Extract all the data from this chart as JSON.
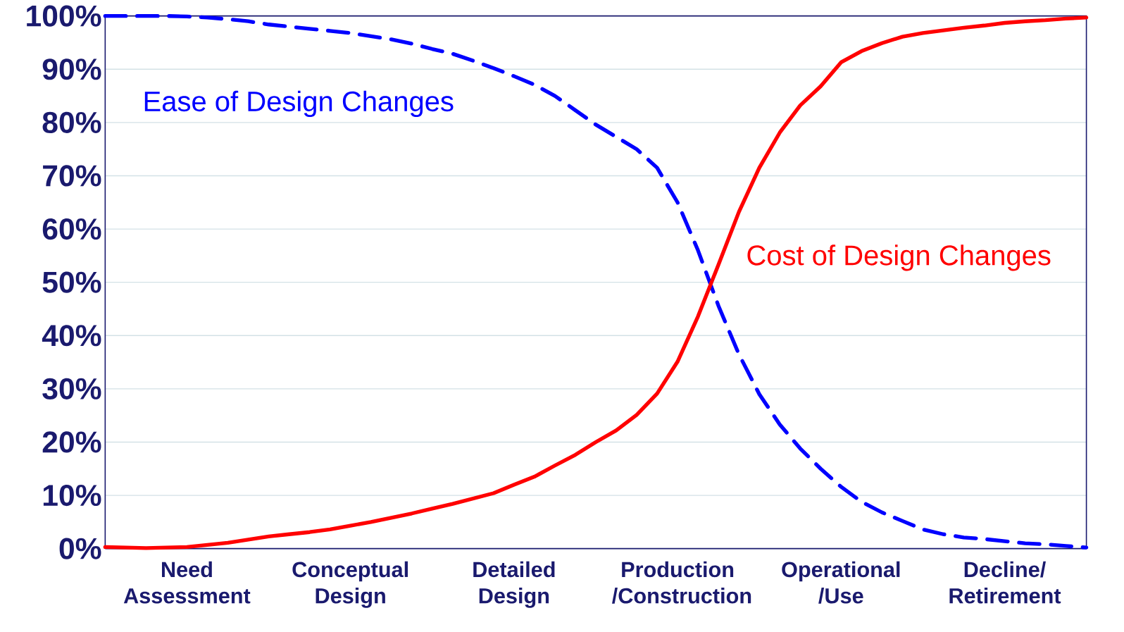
{
  "chart_data": {
    "type": "line",
    "categories": [
      null,
      null,
      null,
      null,
      "Need Assessment",
      null,
      null,
      null,
      null,
      null,
      null,
      null,
      "Conceptual Design",
      null,
      null,
      null,
      null,
      null,
      null,
      null,
      "Detailed Design",
      null,
      null,
      null,
      null,
      null,
      null,
      null,
      "Production /Construction",
      null,
      null,
      null,
      null,
      null,
      null,
      null,
      "Operational /Use",
      null,
      null,
      null,
      null,
      null,
      null,
      null,
      "Decline/ Retirement",
      null,
      null,
      null,
      null
    ],
    "series": [
      {
        "name": "Ease of Design Changes",
        "color": "#0000ff",
        "line_style": "dashed",
        "values": [
          100,
          100,
          100,
          100,
          99.9,
          99.7,
          99.4,
          99,
          98.4,
          98,
          97.6,
          97.2,
          96.8,
          96.2,
          95.6,
          94.8,
          93.8,
          92.9,
          91.6,
          90.2,
          88.7,
          87.1,
          85,
          82.3,
          79.6,
          77.3,
          75,
          71.5,
          65,
          56,
          45.6,
          36.5,
          29,
          23.3,
          18.8,
          15,
          11.6,
          8.8,
          6.8,
          5.2,
          3.6,
          2.7,
          2.1,
          1.8,
          1.4,
          1,
          0.8,
          0.5,
          0.2
        ]
      },
      {
        "name": "Cost of Design Changes",
        "color": "#ff0000",
        "line_style": "solid",
        "values": [
          0.3,
          0.2,
          0.1,
          0.2,
          0.3,
          0.7,
          1.1,
          1.7,
          2.3,
          2.7,
          3.1,
          3.6,
          4.3,
          5,
          5.8,
          6.6,
          7.5,
          8.4,
          9.4,
          10.4,
          12,
          13.5,
          15.6,
          17.6,
          20,
          22.2,
          25.1,
          29.1,
          35.1,
          43.6,
          53.3,
          63.2,
          71.5,
          78.1,
          83.2,
          86.8,
          91.3,
          93.4,
          94.9,
          96.1,
          96.8,
          97.3,
          97.8,
          98.2,
          98.7,
          99,
          99.2,
          99.5,
          99.7
        ]
      }
    ],
    "ylim": [
      0,
      100
    ],
    "yticks": [
      {
        "value": 0,
        "label": "0%"
      },
      {
        "value": 10,
        "label": "10%"
      },
      {
        "value": 20,
        "label": "20%"
      },
      {
        "value": 30,
        "label": "30%"
      },
      {
        "value": 40,
        "label": "40%"
      },
      {
        "value": 50,
        "label": "50%"
      },
      {
        "value": 60,
        "label": "60%"
      },
      {
        "value": 70,
        "label": "70%"
      },
      {
        "value": 80,
        "label": "80%"
      },
      {
        "value": 90,
        "label": "90%"
      },
      {
        "value": 100,
        "label": "100%"
      }
    ],
    "grid": "y",
    "marker": "none"
  }
}
